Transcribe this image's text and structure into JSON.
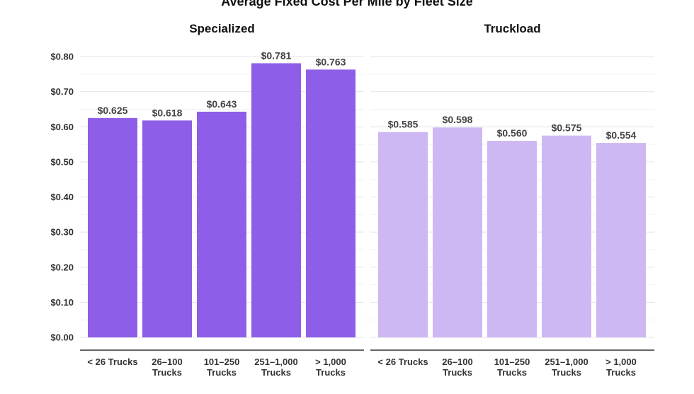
{
  "chart_data": {
    "type": "bar",
    "title": "Average Fixed Cost Per Mile by Fleet Size",
    "ylim": [
      0,
      0.8
    ],
    "yticks": [
      0,
      0.1,
      0.2,
      0.3,
      0.4,
      0.5,
      0.6,
      0.7,
      0.8
    ],
    "ytick_labels": [
      "$0.00",
      "$0.10",
      "$0.20",
      "$0.30",
      "$0.40",
      "$0.50",
      "$0.60",
      "$0.70",
      "$0.80"
    ],
    "categories": [
      [
        "< 26 Trucks"
      ],
      [
        "26–100",
        "Trucks"
      ],
      [
        "101–250",
        "Trucks"
      ],
      [
        "251–1,000",
        "Trucks"
      ],
      [
        "> 1,000",
        "Trucks"
      ]
    ],
    "panels": [
      {
        "name": "Specialized",
        "color": "#8e5ee8",
        "values": [
          0.625,
          0.618,
          0.643,
          0.781,
          0.763
        ],
        "labels": [
          "$0.625",
          "$0.618",
          "$0.643",
          "$0.781",
          "$0.763"
        ]
      },
      {
        "name": "Truckload",
        "color": "#cdb8f3",
        "values": [
          0.585,
          0.598,
          0.56,
          0.575,
          0.554
        ],
        "labels": [
          "$0.585",
          "$0.598",
          "$0.560",
          "$0.575",
          "$0.554"
        ]
      }
    ]
  }
}
